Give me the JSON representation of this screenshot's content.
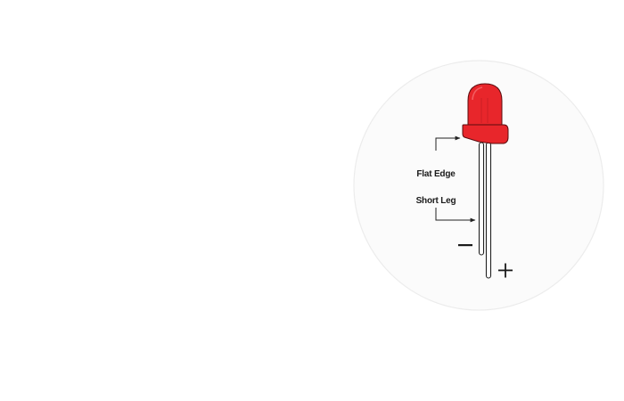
{
  "diagram": {
    "subject": "led",
    "colors": {
      "led_body": "#e8262b",
      "led_outline": "#5a0c0e",
      "lead_fill": "#ffffff",
      "lead_stroke": "#222222",
      "background_circle": "#fbfbfb",
      "background_circle_border": "#ececec",
      "callout": "#222222"
    },
    "labels": {
      "flat_edge": "Flat Edge",
      "short_leg": "Short Leg",
      "negative_sign": "−",
      "positive_sign": "+"
    },
    "icons": {
      "callout_arrow": "right-arrowhead"
    }
  }
}
